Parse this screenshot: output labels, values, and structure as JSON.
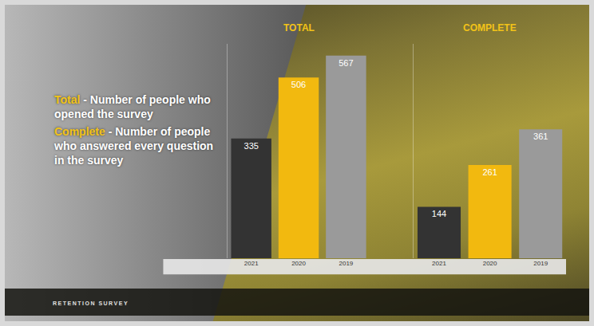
{
  "definitions": [
    {
      "term": "Total",
      "definition": "- Number of people who opened the survey"
    },
    {
      "term": "Complete",
      "definition": "- Number of people who answered every question in the survey"
    }
  ],
  "footer": "RETENTION SURVEY",
  "chart_data": [
    {
      "type": "bar",
      "title": "TOTAL",
      "categories": [
        "2021",
        "2020",
        "2019"
      ],
      "values": [
        335,
        506,
        567
      ],
      "colors": [
        "#333333",
        "#f2b90f",
        "#9a9a9a"
      ],
      "ylim": [
        0,
        600
      ],
      "grid": false,
      "data_labels": true,
      "tick_labels": "x"
    },
    {
      "type": "bar",
      "title": "COMPLETE",
      "categories": [
        "2021",
        "2020",
        "2019"
      ],
      "values": [
        144,
        261,
        361
      ],
      "colors": [
        "#333333",
        "#f2b90f",
        "#9a9a9a"
      ],
      "ylim": [
        0,
        600
      ],
      "grid": false,
      "data_labels": true,
      "tick_labels": "x"
    }
  ]
}
